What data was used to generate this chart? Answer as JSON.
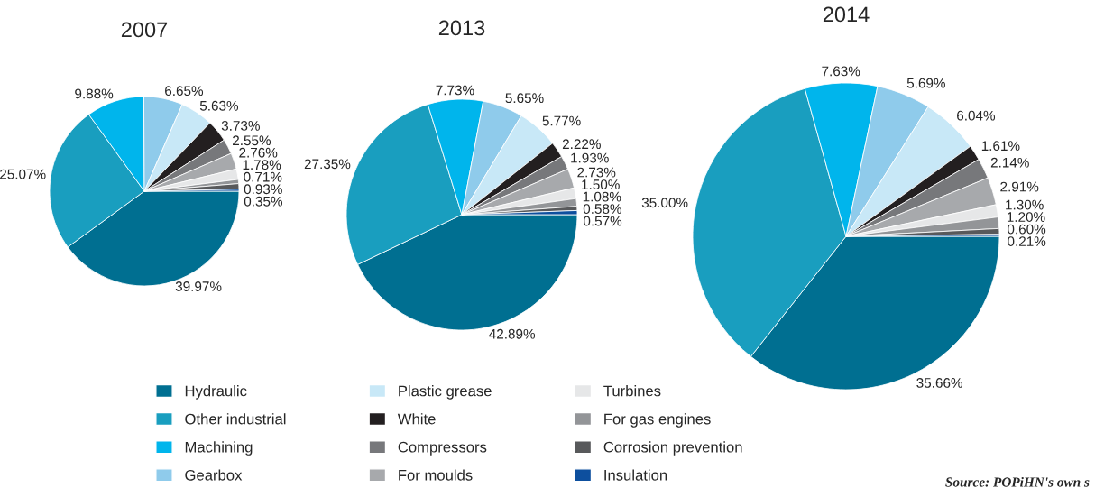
{
  "chart_data": [
    {
      "type": "pie",
      "title": "2007",
      "legend": "bottom",
      "categories": [
        "Hydraulic",
        "Other industrial",
        "Machining",
        "Gearbox",
        "Plastic grease",
        "White",
        "Compressors",
        "For moulds",
        "Turbines",
        "For gas engines",
        "Corrosion prevention",
        "Insulation"
      ],
      "values": [
        39.97,
        25.07,
        9.88,
        6.65,
        5.63,
        3.73,
        2.55,
        2.76,
        1.78,
        0.71,
        0.93,
        0.35
      ],
      "value_labels": [
        "39.97%",
        "25.07%",
        "9.88%",
        "6.65%",
        "5.63%",
        "3.73%",
        "2.55%",
        "2.76%",
        "1.78%",
        "0.71%",
        "0.93%",
        "0.35%"
      ],
      "colors": [
        "#006f91",
        "#199ebf",
        "#00b5ec",
        "#8fcbeb",
        "#c8e8f7",
        "#231f20",
        "#77787b",
        "#a7a9ac",
        "#e6e7e8",
        "#939598",
        "#58595b",
        "#0d4f9e"
      ]
    },
    {
      "type": "pie",
      "title": "2013",
      "categories": [
        null,
        null,
        null,
        null,
        null,
        null,
        null,
        null,
        null,
        null,
        null,
        null
      ],
      "values": [
        42.89,
        27.35,
        7.73,
        5.65,
        5.77,
        2.22,
        1.93,
        2.73,
        1.5,
        1.08,
        0.58,
        0.57
      ],
      "value_labels": [
        "42.89%",
        "27.35%",
        "7.73%",
        "5.65%",
        "5.77%",
        "2.22%",
        "1.93%",
        "2.73%",
        "1.50%",
        "1.08%",
        "0.58%",
        "0.57%"
      ],
      "colors": [
        "#006f91",
        "#199ebf",
        "#00b5ec",
        "#8fcbeb",
        "#c8e8f7",
        "#231f20",
        "#77787b",
        "#a7a9ac",
        "#e6e7e8",
        "#939598",
        "#58595b",
        "#0d4f9e"
      ]
    },
    {
      "type": "pie",
      "title": "2014",
      "categories": [
        null,
        null,
        null,
        null,
        null,
        null,
        null,
        null,
        null,
        null,
        null,
        null
      ],
      "values": [
        35.66,
        35.0,
        7.63,
        5.69,
        6.04,
        1.61,
        2.14,
        2.91,
        1.3,
        1.2,
        0.6,
        0.21
      ],
      "value_labels": [
        "35.66%",
        "35.00%",
        "7.63%",
        "5.69%",
        "6.04%",
        "1.61%",
        "2.14%",
        "2.91%",
        "1.30%",
        "1.20%",
        "0.60%",
        "0.21%"
      ],
      "colors": [
        "#006f91",
        "#199ebf",
        "#00b5ec",
        "#8fcbeb",
        "#c8e8f7",
        "#231f20",
        "#77787b",
        "#a7a9ac",
        "#e6e7e8",
        "#939598",
        "#58595b",
        "#0d4f9e"
      ],
      "annotations": [
        "Source: POPiHN's own s"
      ]
    }
  ]
}
